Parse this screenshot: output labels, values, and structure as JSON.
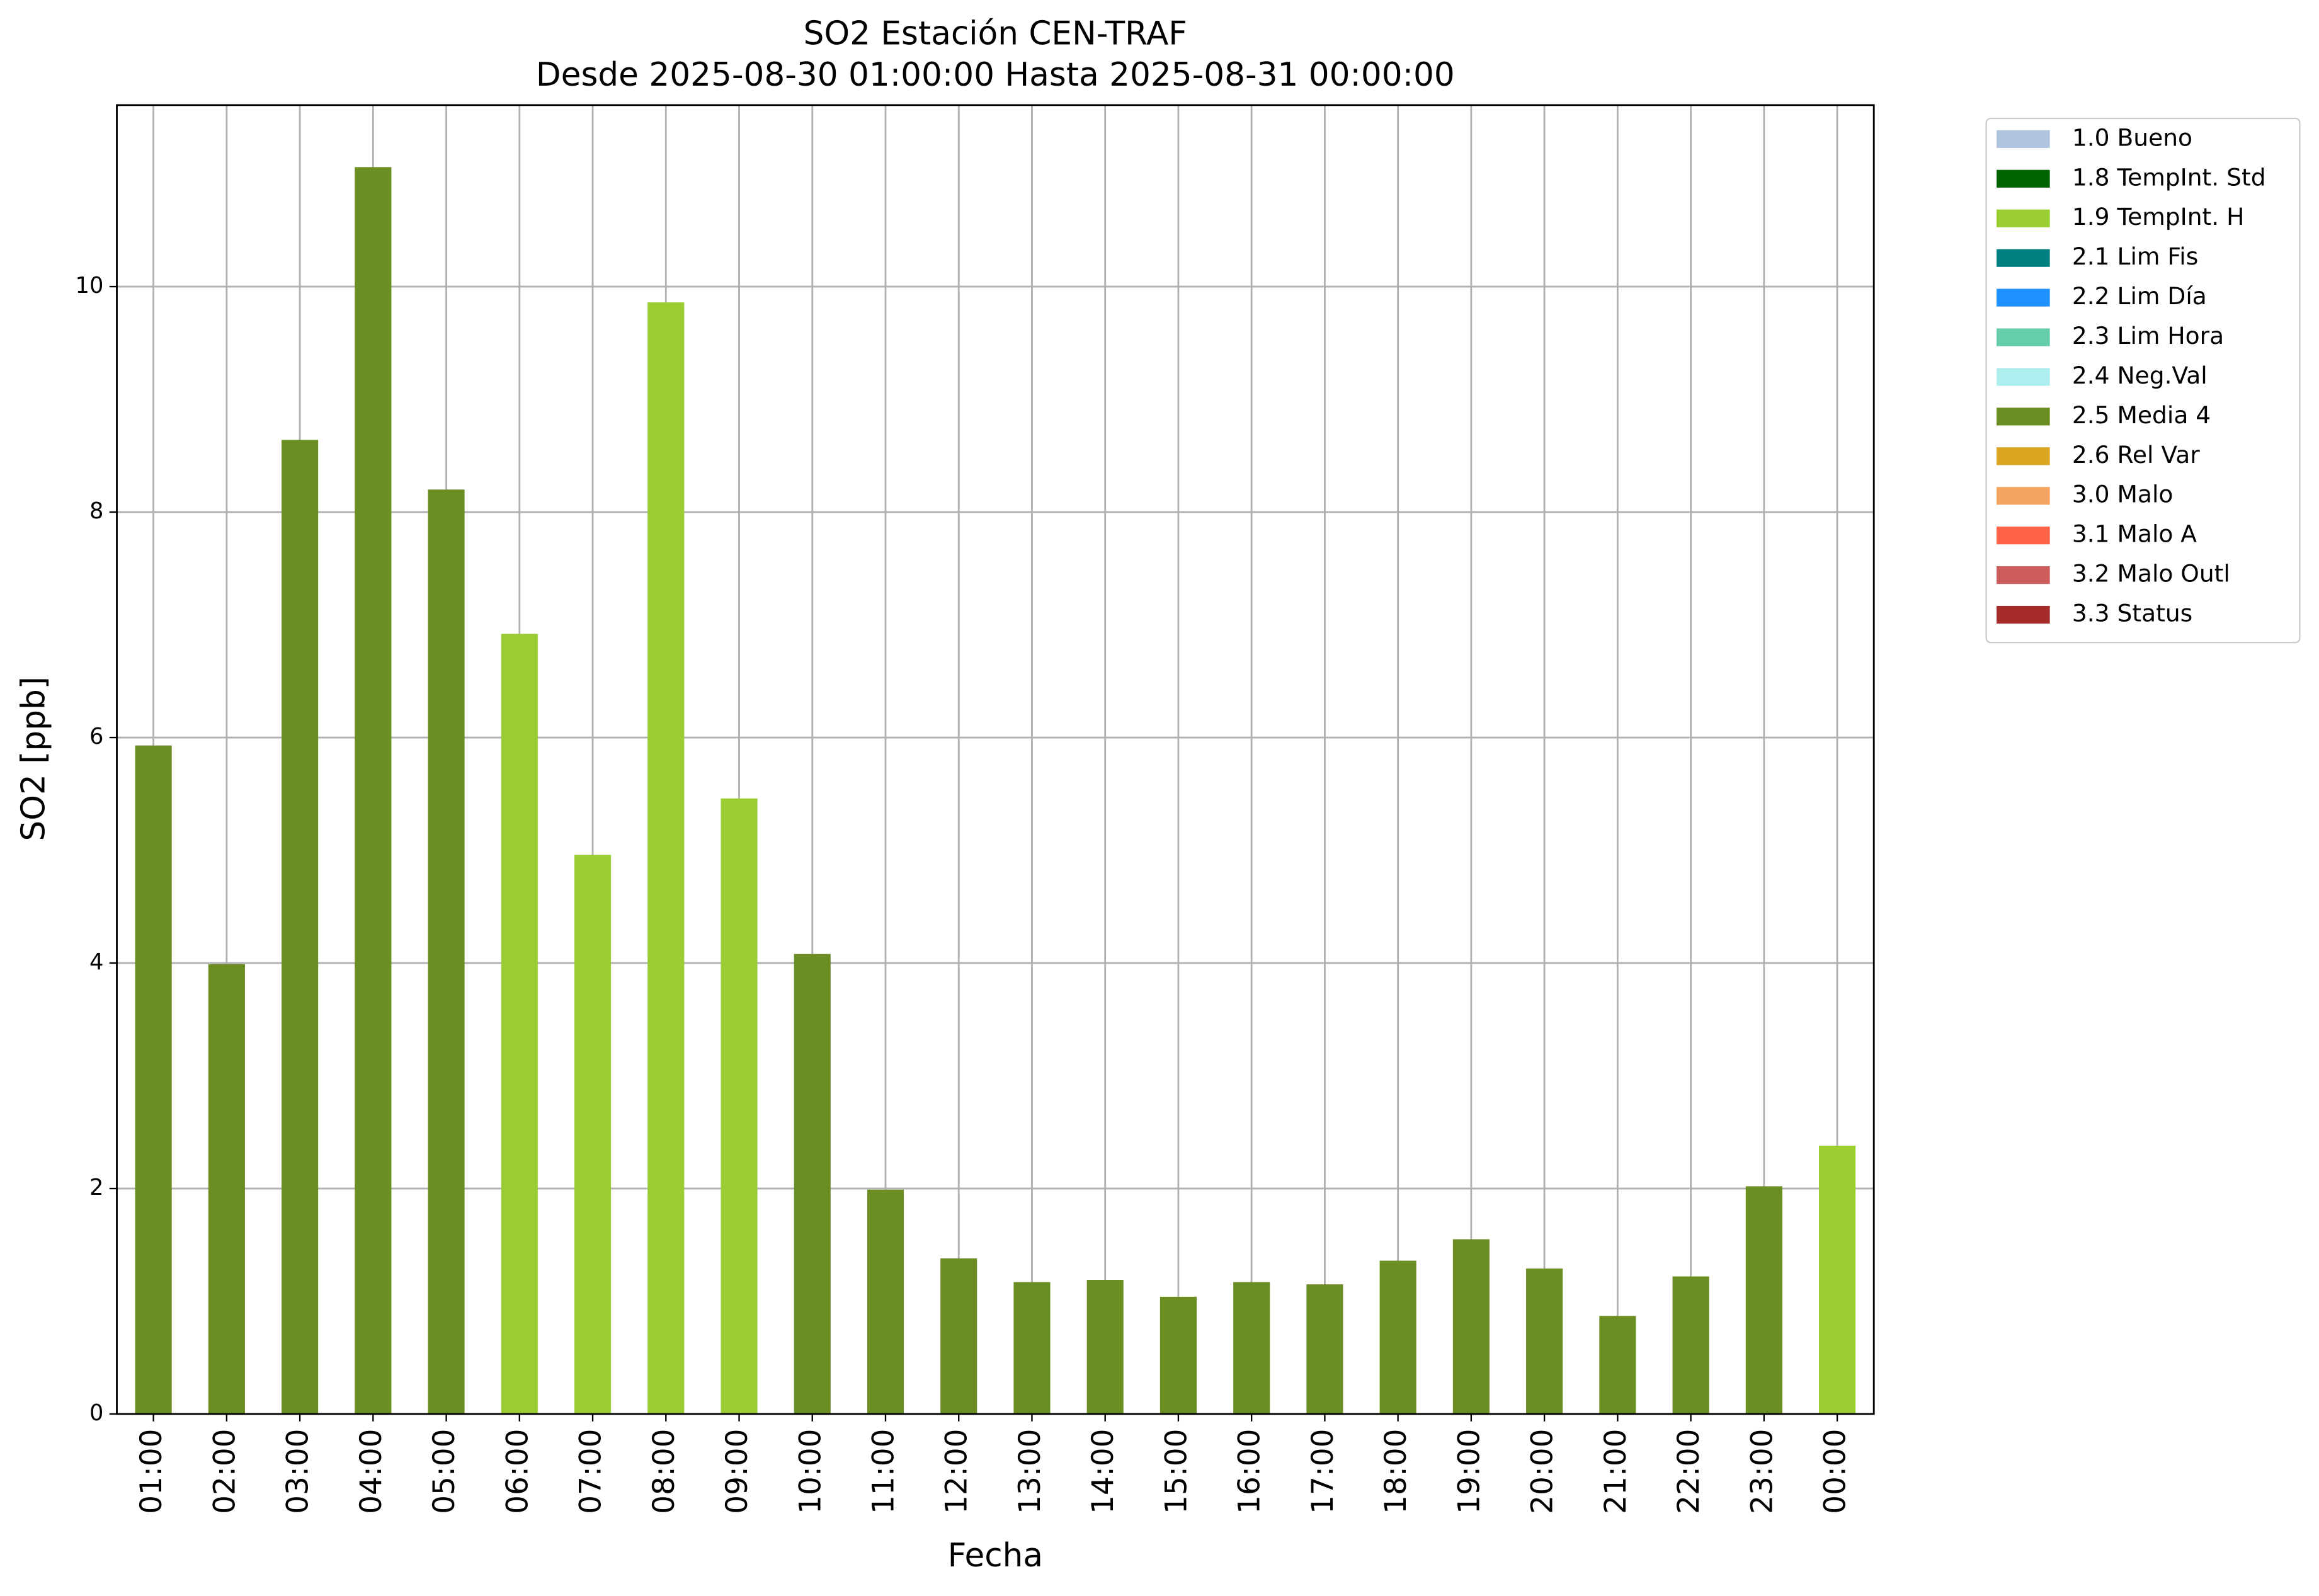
{
  "chart_data": {
    "type": "bar",
    "title": "SO2 Estación CEN-TRAF",
    "subtitle": "Desde 2025-08-30 01:00:00 Hasta 2025-08-31 00:00:00",
    "x_label": "Fecha",
    "y_label": "SO2 [ppb]",
    "categories": [
      "01:00",
      "02:00",
      "03:00",
      "04:00",
      "05:00",
      "06:00",
      "07:00",
      "08:00",
      "09:00",
      "10:00",
      "11:00",
      "12:00",
      "13:00",
      "14:00",
      "15:00",
      "16:00",
      "17:00",
      "18:00",
      "19:00",
      "20:00",
      "21:00",
      "22:00",
      "23:00",
      "00:00"
    ],
    "series": [
      {
        "name": "1.0 Bueno",
        "color": "#b0c4de",
        "values": [
          null,
          null,
          null,
          null,
          null,
          null,
          null,
          null,
          null,
          null,
          null,
          null,
          null,
          null,
          null,
          null,
          null,
          null,
          null,
          null,
          null,
          null,
          null,
          null
        ]
      },
      {
        "name": "1.8 TempInt. Std",
        "color": "#006400",
        "values": [
          null,
          null,
          null,
          null,
          null,
          null,
          null,
          null,
          null,
          null,
          null,
          null,
          null,
          null,
          null,
          null,
          null,
          null,
          null,
          null,
          null,
          null,
          null,
          null
        ]
      },
      {
        "name": "1.9 TempInt. H",
        "color": "#9acd32",
        "values": [
          null,
          null,
          null,
          null,
          null,
          6.92,
          4.96,
          9.86,
          5.46,
          null,
          null,
          null,
          null,
          null,
          null,
          null,
          null,
          null,
          null,
          null,
          null,
          null,
          null,
          2.38
        ]
      },
      {
        "name": "2.1 Lim Fis",
        "color": "#008080",
        "values": [
          null,
          null,
          null,
          null,
          null,
          null,
          null,
          null,
          null,
          null,
          null,
          null,
          null,
          null,
          null,
          null,
          null,
          null,
          null,
          null,
          null,
          null,
          null,
          null
        ]
      },
      {
        "name": "2.2 Lim Día",
        "color": "#1e90ff",
        "values": [
          null,
          null,
          null,
          null,
          null,
          null,
          null,
          null,
          null,
          null,
          null,
          null,
          null,
          null,
          null,
          null,
          null,
          null,
          null,
          null,
          null,
          null,
          null,
          null
        ]
      },
      {
        "name": "2.3 Lim Hora",
        "color": "#66cdaa",
        "values": [
          null,
          null,
          null,
          null,
          null,
          null,
          null,
          null,
          null,
          null,
          null,
          null,
          null,
          null,
          null,
          null,
          null,
          null,
          null,
          null,
          null,
          null,
          null,
          null
        ]
      },
      {
        "name": "2.4 Neg.Val",
        "color": "#afeeee",
        "values": [
          null,
          null,
          null,
          null,
          null,
          null,
          null,
          null,
          null,
          null,
          null,
          null,
          null,
          null,
          null,
          null,
          null,
          null,
          null,
          null,
          null,
          null,
          null,
          null
        ]
      },
      {
        "name": "2.5 Media 4",
        "color": "#6b8e23",
        "values": [
          5.93,
          3.99,
          8.64,
          11.06,
          8.2,
          null,
          null,
          null,
          null,
          4.08,
          1.99,
          1.38,
          1.17,
          1.19,
          1.04,
          1.17,
          1.15,
          1.36,
          1.55,
          1.29,
          0.87,
          1.22,
          2.02,
          null
        ]
      },
      {
        "name": "2.6 Rel Var",
        "color": "#daa520",
        "values": [
          null,
          null,
          null,
          null,
          null,
          null,
          null,
          null,
          null,
          null,
          null,
          null,
          null,
          null,
          null,
          null,
          null,
          null,
          null,
          null,
          null,
          null,
          null,
          null
        ]
      },
      {
        "name": "3.0 Malo",
        "color": "#f4a460",
        "values": [
          null,
          null,
          null,
          null,
          null,
          null,
          null,
          null,
          null,
          null,
          null,
          null,
          null,
          null,
          null,
          null,
          null,
          null,
          null,
          null,
          null,
          null,
          null,
          null
        ]
      },
      {
        "name": "3.1 Malo A",
        "color": "#ff6347",
        "values": [
          null,
          null,
          null,
          null,
          null,
          null,
          null,
          null,
          null,
          null,
          null,
          null,
          null,
          null,
          null,
          null,
          null,
          null,
          null,
          null,
          null,
          null,
          null,
          null
        ]
      },
      {
        "name": "3.2 Malo Outl",
        "color": "#cd5c5c",
        "values": [
          null,
          null,
          null,
          null,
          null,
          null,
          null,
          null,
          null,
          null,
          null,
          null,
          null,
          null,
          null,
          null,
          null,
          null,
          null,
          null,
          null,
          null,
          null,
          null
        ]
      },
      {
        "name": "3.3 Status",
        "color": "#a52a2a",
        "values": [
          null,
          null,
          null,
          null,
          null,
          null,
          null,
          null,
          null,
          null,
          null,
          null,
          null,
          null,
          null,
          null,
          null,
          null,
          null,
          null,
          null,
          null,
          null,
          null
        ]
      }
    ],
    "ylim": [
      0,
      11.61
    ],
    "yticks": [
      0,
      2,
      4,
      6,
      8,
      10
    ],
    "grid": true,
    "legend": "outside-upper-right"
  }
}
